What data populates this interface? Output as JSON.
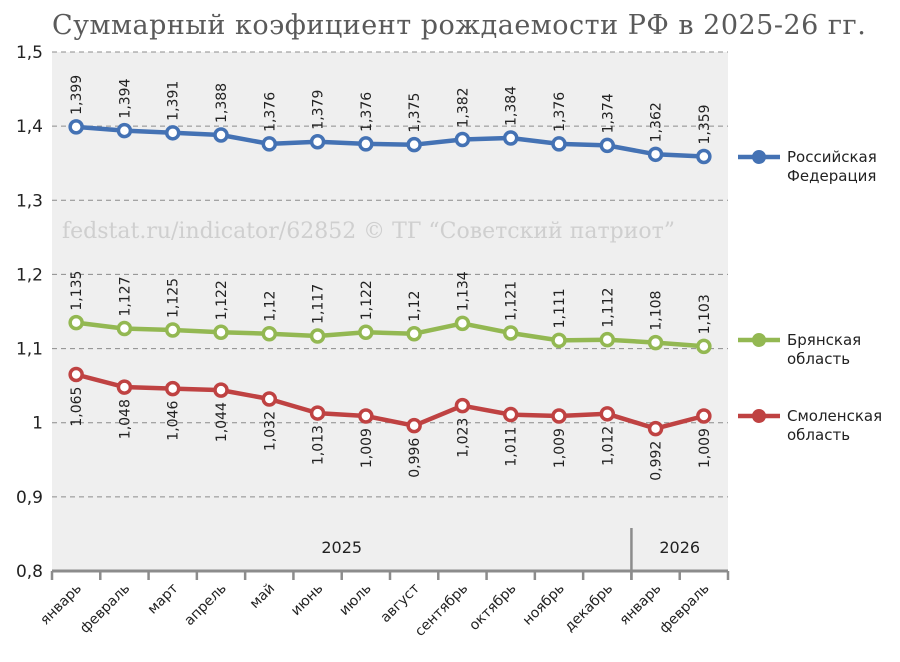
{
  "chart_data": {
    "type": "line",
    "title": "Суммарный коэфициент рождаемости РФ в 2025-26 гг.",
    "watermark": "fedstat.ru/indicator/62852 © ТГ “Советский патриот”",
    "categories": [
      "январь",
      "февраль",
      "март",
      "апрель",
      "май",
      "июнь",
      "июль",
      "август",
      "сентябрь",
      "октябрь",
      "ноябрь",
      "декабрь",
      "январь",
      "февраль"
    ],
    "years": [
      {
        "label": "2025",
        "from": 0,
        "to": 11
      },
      {
        "label": "2026",
        "from": 12,
        "to": 13
      }
    ],
    "ylim": [
      0.8,
      1.5
    ],
    "yticks": [
      {
        "value": 0.8,
        "label": "0,8"
      },
      {
        "value": 0.9,
        "label": "0,9"
      },
      {
        "value": 1.0,
        "label": "1"
      },
      {
        "value": 1.1,
        "label": "1,1"
      },
      {
        "value": 1.2,
        "label": "1,2"
      },
      {
        "value": 1.3,
        "label": "1,3"
      },
      {
        "value": 1.4,
        "label": "1,4"
      },
      {
        "value": 1.5,
        "label": "1,5"
      }
    ],
    "series": [
      {
        "name": "Российская Федерация",
        "legend_lines": [
          "Российская",
          "Федерация"
        ],
        "color": "#4472b4",
        "label_position": "above",
        "values": [
          1.399,
          1.394,
          1.391,
          1.388,
          1.376,
          1.379,
          1.376,
          1.375,
          1.382,
          1.384,
          1.376,
          1.374,
          1.362,
          1.359
        ],
        "labels": [
          "1,399",
          "1,394",
          "1,391",
          "1,388",
          "1,376",
          "1,379",
          "1,376",
          "1,375",
          "1,382",
          "1,384",
          "1,376",
          "1,374",
          "1,362",
          "1,359"
        ]
      },
      {
        "name": "Брянская область",
        "legend_lines": [
          "Брянская",
          "область"
        ],
        "color": "#93b852",
        "label_position": "above",
        "values": [
          1.135,
          1.127,
          1.125,
          1.122,
          1.12,
          1.117,
          1.122,
          1.12,
          1.134,
          1.121,
          1.111,
          1.112,
          1.108,
          1.103
        ],
        "labels": [
          "1,135",
          "1,127",
          "1,125",
          "1,122",
          "1,12",
          "1,117",
          "1,122",
          "1,12",
          "1,134",
          "1,121",
          "1,111",
          "1,112",
          "1,108",
          "1,103"
        ]
      },
      {
        "name": "Смоленская область",
        "legend_lines": [
          "Смоленская",
          "область"
        ],
        "color": "#bf4242",
        "label_position": "below",
        "values": [
          1.065,
          1.048,
          1.046,
          1.044,
          1.032,
          1.013,
          1.009,
          0.996,
          1.023,
          1.011,
          1.009,
          1.012,
          0.992,
          1.009
        ],
        "labels": [
          "1,065",
          "1,048",
          "1,046",
          "1,044",
          "1,032",
          "1,013",
          "1,009",
          "0,996",
          "1,023",
          "1,011",
          "1,009",
          "1,012",
          "0,992",
          "1,009"
        ]
      }
    ]
  }
}
